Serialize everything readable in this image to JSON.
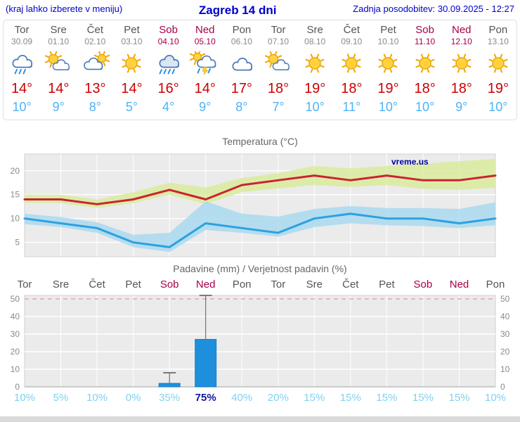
{
  "header": {
    "left_note": "(kraj lahko izberete v meniju)",
    "title": "Zagreb 14 dni",
    "updated": "Zadnja posodobitev: 30.09.2025 - 12:27"
  },
  "colors": {
    "header_blue": "#0000cc",
    "weekday_gray": "#555555",
    "weekend_red": "#a80048",
    "high_temp_red": "#cc0000",
    "low_temp_blue": "#4db2f7",
    "bar_blue": "#1e8fdc",
    "percent_cyan": "#7fd2ef",
    "percent_highlight": "#1414a0",
    "temp_max_line": "#cc2233",
    "temp_min_line": "#2da0e0",
    "band_green": "#d9ec9c",
    "band_blue": "#a5d8f0",
    "watermark_navy": "#000099"
  },
  "days": [
    {
      "name": "Tor",
      "date": "30.09",
      "weekend": false,
      "icon": "rain",
      "high": "14°",
      "low": "10°"
    },
    {
      "name": "Sre",
      "date": "01.10",
      "weekend": false,
      "icon": "sun-cloud",
      "high": "14°",
      "low": "9°"
    },
    {
      "name": "Čet",
      "date": "02.10",
      "weekend": false,
      "icon": "cloud-sun",
      "high": "13°",
      "low": "8°"
    },
    {
      "name": "Pet",
      "date": "03.10",
      "weekend": false,
      "icon": "sun",
      "high": "14°",
      "low": "5°"
    },
    {
      "name": "Sob",
      "date": "04.10",
      "weekend": true,
      "icon": "heavy-rain",
      "high": "16°",
      "low": "4°"
    },
    {
      "name": "Ned",
      "date": "05.10",
      "weekend": true,
      "icon": "storm",
      "high": "14°",
      "low": "9°"
    },
    {
      "name": "Pon",
      "date": "06.10",
      "weekend": false,
      "icon": "cloud",
      "high": "17°",
      "low": "8°"
    },
    {
      "name": "Tor",
      "date": "07.10",
      "weekend": false,
      "icon": "sun-cloud",
      "high": "18°",
      "low": "7°"
    },
    {
      "name": "Sre",
      "date": "08.10",
      "weekend": false,
      "icon": "sun",
      "high": "19°",
      "low": "10°"
    },
    {
      "name": "Čet",
      "date": "09.10",
      "weekend": false,
      "icon": "sun",
      "high": "18°",
      "low": "11°"
    },
    {
      "name": "Pet",
      "date": "10.10",
      "weekend": false,
      "icon": "sun",
      "high": "19°",
      "low": "10°"
    },
    {
      "name": "Sob",
      "date": "11.10",
      "weekend": true,
      "icon": "sun",
      "high": "18°",
      "low": "10°"
    },
    {
      "name": "Ned",
      "date": "12.10",
      "weekend": true,
      "icon": "sun",
      "high": "18°",
      "low": "9°"
    },
    {
      "name": "Pon",
      "date": "13.10",
      "weekend": false,
      "icon": "sun",
      "high": "19°",
      "low": "10°"
    }
  ],
  "chart_data": [
    {
      "type": "line",
      "title": "Temperatura (°C)",
      "categories": [
        "Tor 30.09",
        "Sre 01.10",
        "Čet 02.10",
        "Pet 03.10",
        "Sob 04.10",
        "Ned 05.10",
        "Pon 06.10",
        "Tor 07.10",
        "Sre 08.10",
        "Čet 09.10",
        "Pet 10.10",
        "Sob 11.10",
        "Ned 12.10",
        "Pon 13.10"
      ],
      "ylim": [
        2,
        23.5
      ],
      "yticks": [
        5,
        10,
        15,
        20
      ],
      "background": "#ebebeb",
      "grid": true,
      "watermark": "vreme.us",
      "series": [
        {
          "name": "max-temperature",
          "color": "#cc2233",
          "values": [
            14,
            14,
            13,
            14,
            16,
            14,
            17,
            18,
            19,
            18,
            19,
            18,
            18,
            19
          ]
        },
        {
          "name": "min-temperature",
          "color": "#2da0e0",
          "values": [
            10,
            9,
            8,
            5,
            4,
            9,
            8,
            7,
            10,
            11,
            10,
            10,
            9,
            10
          ]
        }
      ],
      "bands": [
        {
          "name": "max-range",
          "color": "#d9ec9c",
          "opacity": 0.85,
          "upper": [
            15,
            15,
            14,
            15.5,
            17.5,
            16.5,
            18.5,
            19.5,
            21,
            20.5,
            21,
            21.5,
            22,
            22.5
          ],
          "lower": [
            13.3,
            13.2,
            12.2,
            13.2,
            15,
            13,
            15.5,
            16.3,
            17,
            16.6,
            17,
            16.2,
            16,
            16.4
          ]
        },
        {
          "name": "min-range",
          "color": "#a5d8f0",
          "opacity": 0.8,
          "upper": [
            11,
            10.3,
            9.2,
            6.6,
            7,
            13.6,
            11,
            10.4,
            12,
            12.6,
            12.2,
            12.2,
            12,
            13.4
          ],
          "lower": [
            8.8,
            8.2,
            7,
            4,
            3,
            7.6,
            7,
            6.2,
            8.2,
            9,
            8.6,
            8.4,
            8,
            8.6
          ]
        }
      ]
    },
    {
      "type": "bar",
      "title": "Padavine (mm) / Verjetnost padavin (%)",
      "categories": [
        "Tor",
        "Sre",
        "Čet",
        "Pet",
        "Sob",
        "Ned",
        "Pon",
        "Tor",
        "Sre",
        "Čet",
        "Pet",
        "Sob",
        "Ned",
        "Pon"
      ],
      "values_mm": [
        0,
        0,
        0,
        0,
        2,
        27,
        0,
        0,
        0,
        0,
        0,
        0,
        0,
        0
      ],
      "whisker_max_mm": [
        0,
        0,
        0,
        0,
        8,
        52,
        0,
        0,
        0,
        0,
        0,
        0,
        0,
        0
      ],
      "probabilities": [
        "10%",
        "5%",
        "10%",
        "0%",
        "35%",
        "75%",
        "40%",
        "20%",
        "15%",
        "15%",
        "15%",
        "15%",
        "15%",
        "10%"
      ],
      "highlight_index": 5,
      "ylim": [
        0,
        52
      ],
      "yticks": [
        0,
        10,
        20,
        30,
        40,
        50
      ],
      "bar_color": "#1e8fdc",
      "legend_position": "none"
    }
  ]
}
